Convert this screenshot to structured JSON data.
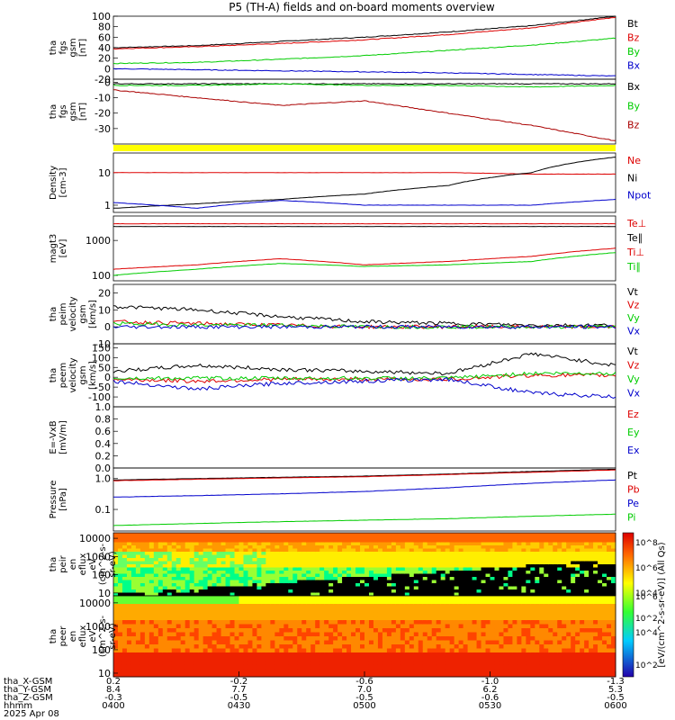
{
  "title": "P5 (TH-A) fields and on-board moments overview",
  "colorbar_label": "[eV/(cm^2-s-sr-eV)] (All Qs)",
  "colorbar_ticks": [
    "10^8",
    "10^6",
    "10^4",
    "10^2",
    "10^6",
    "10^4",
    "10^2"
  ],
  "x_axis": {
    "row_labels": [
      "tha_X-GSM",
      "tha_Y-GSM",
      "tha_Z-GSM",
      "hhmm",
      "2025 Apr 08"
    ],
    "columns": [
      {
        "x": [
          "0.2",
          "8.4",
          "-0.3",
          "0400"
        ]
      },
      {
        "x": [
          "-0.2",
          "7.7",
          "-0.5",
          "0430"
        ]
      },
      {
        "x": [
          "-0.6",
          "7.0",
          "-0.5",
          "0500"
        ]
      },
      {
        "x": [
          "-1.0",
          "6.2",
          "-0.6",
          "0530"
        ]
      },
      {
        "x": [
          "-1.3",
          "5.3",
          "-0.5",
          "0600"
        ]
      }
    ]
  },
  "chart_data": [
    {
      "type": "line",
      "panel": "fgs_gsm",
      "ylabel": [
        "tha",
        "fgs",
        "gsm",
        "[nT]"
      ],
      "ylim": [
        -20,
        100
      ],
      "yticks": [
        "100",
        "80",
        "60",
        "40",
        "20",
        "0",
        "-20"
      ],
      "series": [
        {
          "name": "Bt",
          "color": "#000000",
          "values": [
            40,
            44,
            52,
            60,
            70,
            82,
            100
          ]
        },
        {
          "name": "Bz",
          "color": "#dd0000",
          "values": [
            38,
            42,
            48,
            55,
            65,
            78,
            98
          ]
        },
        {
          "name": "By",
          "color": "#00cc00",
          "values": [
            10,
            12,
            18,
            25,
            35,
            45,
            58
          ]
        },
        {
          "name": "Bx",
          "color": "#0000cc",
          "values": [
            0,
            -2,
            -4,
            -6,
            -8,
            -11,
            -14
          ]
        }
      ]
    },
    {
      "type": "line",
      "panel": "fgs_dsl",
      "ylabel": [
        "tha",
        "fgs",
        "gsm",
        "[nT]"
      ],
      "ylim": [
        -40,
        2
      ],
      "yticks": [
        "0",
        "-10",
        "-20",
        "-30"
      ],
      "series": [
        {
          "name": "Bx",
          "color": "#000000",
          "values": [
            -1,
            -1,
            -1,
            -1,
            -1,
            -1,
            -1
          ]
        },
        {
          "name": "By",
          "color": "#00cc00",
          "values": [
            -2,
            -2,
            -1,
            -2,
            -2,
            -3,
            -2
          ]
        },
        {
          "name": "Bz",
          "color": "#aa0000",
          "values": [
            -5,
            -10,
            -15,
            -12,
            -20,
            -28,
            -38
          ]
        }
      ]
    },
    {
      "type": "line",
      "panel": "density",
      "ylabel": [
        "Density",
        "[cm-3]"
      ],
      "ylim": [
        0.6,
        40
      ],
      "yscale": "log",
      "yticks": [
        "10",
        "1"
      ],
      "series": [
        {
          "name": "Ne",
          "color": "#dd0000",
          "values": [
            10,
            10,
            10,
            10,
            10,
            9,
            9
          ]
        },
        {
          "name": "Ni",
          "color": "#000000",
          "values": [
            0.8,
            1.1,
            1.5,
            2.2,
            4,
            10,
            30
          ]
        },
        {
          "name": "Npot",
          "color": "#0000cc",
          "values": [
            1.2,
            0.8,
            1.4,
            1.0,
            1.0,
            1.0,
            1.5
          ]
        }
      ]
    },
    {
      "type": "line",
      "panel": "temperature",
      "ylabel": [
        "magt3",
        "[eV]"
      ],
      "ylim": [
        70,
        5000
      ],
      "yscale": "log",
      "yticks": [
        "1000",
        "100"
      ],
      "series": [
        {
          "name": "Te⊥",
          "color": "#dd0000",
          "values": [
            3000,
            3000,
            3000,
            3000,
            3000,
            3000,
            3000
          ]
        },
        {
          "name": "Te∥",
          "color": "#000000",
          "values": [
            2500,
            2500,
            2500,
            2500,
            2500,
            2500,
            2500
          ]
        },
        {
          "name": "Ti⊥",
          "color": "#dd0000",
          "values": [
            150,
            200,
            300,
            200,
            250,
            350,
            600
          ]
        },
        {
          "name": "Ti∥",
          "color": "#00cc00",
          "values": [
            100,
            150,
            220,
            180,
            200,
            250,
            450
          ]
        }
      ]
    },
    {
      "type": "line",
      "panel": "peim_velocity",
      "ylabel": [
        "tha",
        "peim",
        "velocity",
        "gsm",
        "[km/s]"
      ],
      "ylim": [
        -10,
        25
      ],
      "yticks": [
        "20",
        "10",
        "0",
        "-10"
      ],
      "series": [
        {
          "name": "Vt",
          "color": "#000000",
          "values": [
            12,
            10,
            6,
            3,
            2,
            1,
            1
          ]
        },
        {
          "name": "Vz",
          "color": "#dd0000",
          "values": [
            3,
            2,
            1,
            0,
            0,
            0,
            0
          ]
        },
        {
          "name": "Vy",
          "color": "#00cc00",
          "values": [
            2,
            1,
            1,
            0,
            0,
            0,
            0
          ]
        },
        {
          "name": "Vx",
          "color": "#0000cc",
          "values": [
            0,
            0,
            0,
            0,
            0,
            0,
            0
          ]
        }
      ]
    },
    {
      "type": "line",
      "panel": "peem_velocity",
      "ylabel": [
        "tha",
        "peem",
        "velocity",
        "gsm",
        "[km/s]"
      ],
      "ylim": [
        -150,
        170
      ],
      "yticks": [
        "150",
        "100",
        "50",
        "0",
        "-50",
        "-100"
      ],
      "series": [
        {
          "name": "Vt",
          "color": "#000000",
          "values": [
            30,
            60,
            40,
            30,
            20,
            120,
            60
          ]
        },
        {
          "name": "Vz",
          "color": "#dd0000",
          "values": [
            -10,
            -20,
            -10,
            -10,
            -10,
            10,
            10
          ]
        },
        {
          "name": "Vy",
          "color": "#00cc00",
          "values": [
            -5,
            -5,
            -5,
            -5,
            -5,
            20,
            20
          ]
        },
        {
          "name": "Vx",
          "color": "#0000cc",
          "values": [
            -20,
            -60,
            -30,
            -20,
            -10,
            -80,
            -100
          ]
        }
      ]
    },
    {
      "type": "line",
      "panel": "efield",
      "ylabel": [
        "E=-VxB",
        "[mV/m]"
      ],
      "ylim": [
        0,
        1
      ],
      "yticks": [
        "1.0",
        "0.8",
        "0.6",
        "0.4",
        "0.2",
        "0.0"
      ],
      "series": [
        {
          "name": "Ez",
          "color": "#dd0000",
          "values": []
        },
        {
          "name": "Ey",
          "color": "#00cc00",
          "values": []
        },
        {
          "name": "Ex",
          "color": "#0000cc",
          "values": []
        }
      ]
    },
    {
      "type": "line",
      "panel": "pressure",
      "ylabel": [
        "Pressure",
        "[nPa]"
      ],
      "ylim": [
        0.02,
        2.2
      ],
      "yscale": "log",
      "yticks": [
        "1.0",
        "0.1"
      ],
      "series": [
        {
          "name": "Pt",
          "color": "#000000",
          "values": [
            0.9,
            1.0,
            1.1,
            1.2,
            1.4,
            1.7,
            2.0
          ]
        },
        {
          "name": "Pb",
          "color": "#dd0000",
          "values": [
            0.85,
            0.95,
            1.05,
            1.15,
            1.35,
            1.6,
            1.9
          ]
        },
        {
          "name": "Pe",
          "color": "#0000cc",
          "values": [
            0.25,
            0.28,
            0.32,
            0.38,
            0.5,
            0.7,
            0.9
          ]
        },
        {
          "name": "Pi",
          "color": "#00cc00",
          "values": [
            0.03,
            0.035,
            0.04,
            0.045,
            0.05,
            0.06,
            0.07
          ]
        }
      ]
    },
    {
      "type": "heatmap",
      "panel": "peir_spec",
      "ylabel": [
        "tha",
        "peir",
        "en",
        "eflux",
        "eV",
        "(cm^2-s-",
        "sr-eV)"
      ],
      "ylim": [
        7,
        20000
      ],
      "yscale": "log",
      "yticks": [
        "10000",
        "1000",
        "100",
        "10"
      ]
    },
    {
      "type": "heatmap",
      "panel": "peer_spec",
      "ylabel": [
        "tha",
        "peer",
        "en",
        "eflux",
        "eV",
        "(cm^2-s-",
        "sr-eV)"
      ],
      "ylim": [
        7,
        20000
      ],
      "yscale": "log",
      "yticks": [
        "10000",
        "1000",
        "100",
        "10"
      ]
    }
  ]
}
